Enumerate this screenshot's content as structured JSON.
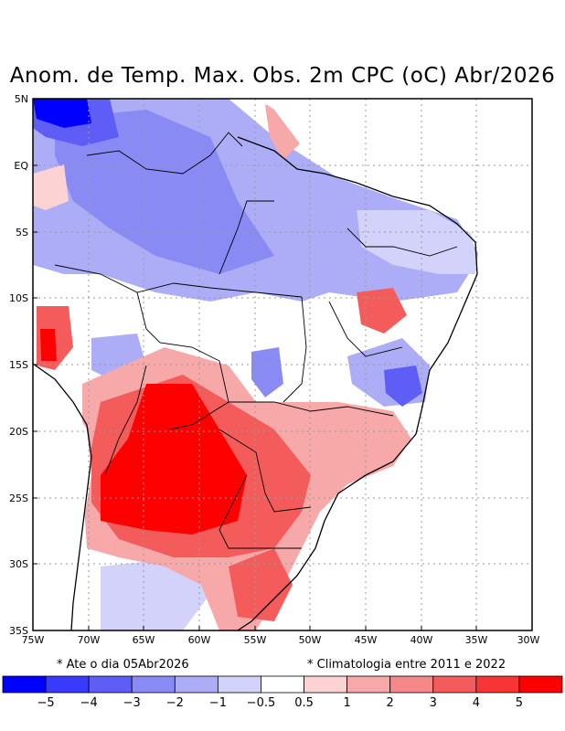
{
  "title": "Anom. de Temp. Max. Obs. 2m CPC (oC) Abr/2026",
  "notes": {
    "left": "* Ate o dia 05Abr2026",
    "right": "* Climatologia entre 2011 e 2022"
  },
  "axes": {
    "lat_labels": [
      "5N",
      "EQ",
      "5S",
      "10S",
      "15S",
      "20S",
      "25S",
      "30S",
      "35S"
    ],
    "lon_labels": [
      "75W",
      "70W",
      "65W",
      "60W",
      "55W",
      "50W",
      "45W",
      "40W",
      "35W",
      "30W"
    ]
  },
  "colorbar": {
    "colors": [
      "#0000ff",
      "#3a3afc",
      "#5e5ef7",
      "#8a8af5",
      "#acacf7",
      "#d2d2fa",
      "#ffffff",
      "#fcd2d2",
      "#f7a9a9",
      "#f58888",
      "#f45c5c",
      "#f83535",
      "#ff0000"
    ],
    "labels": [
      "−5",
      "−4",
      "−3",
      "−2",
      "−1",
      "−0.5",
      "0.5",
      "1",
      "2",
      "3",
      "4",
      "5"
    ]
  },
  "palette": {
    "cold": "#5e5ef7",
    "cold_mid": "#8a8af5",
    "cold_light": "#acacf7",
    "cold_pale": "#d2d2fa",
    "warm_pale": "#fcd2d2",
    "warm_light": "#f7a9a9",
    "warm": "#f45c5c",
    "hot": "#ff0000",
    "deep_cold": "#0000ff"
  }
}
